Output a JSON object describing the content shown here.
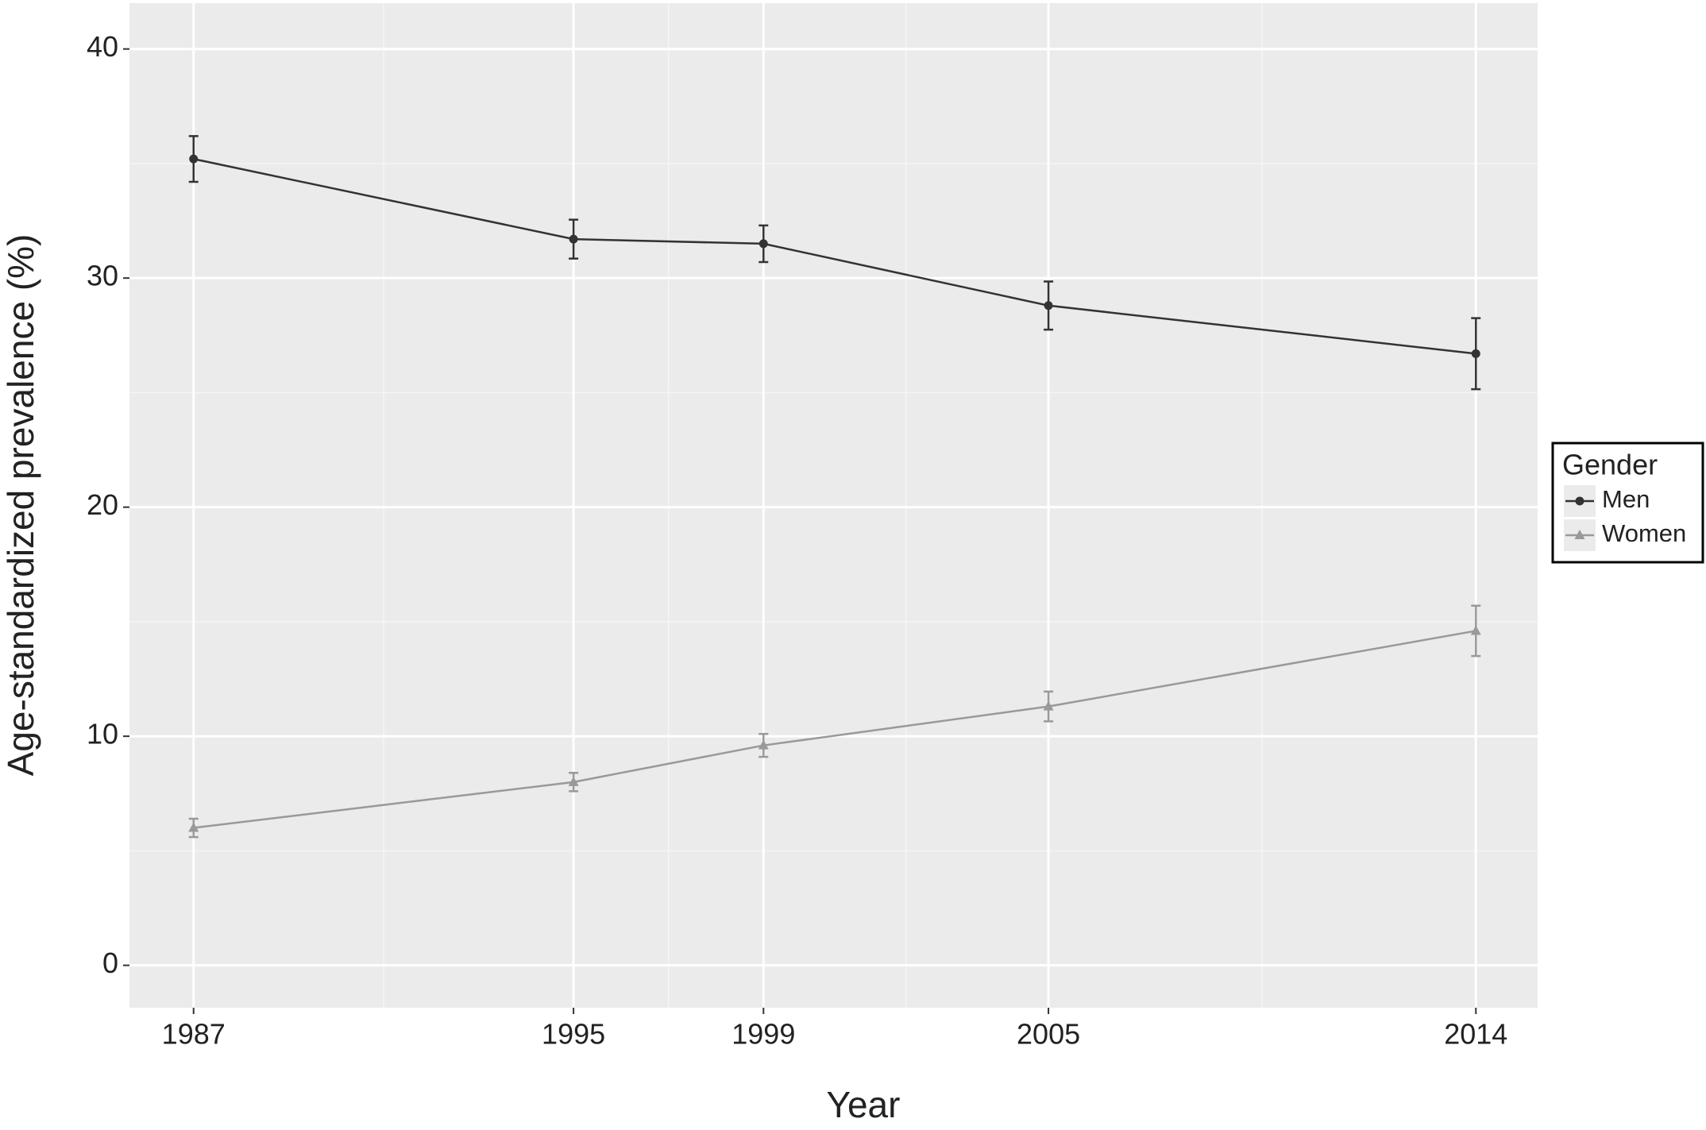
{
  "chart_data": {
    "type": "line",
    "x_label": "Year",
    "y_label": "Age-standardized prevalence (%)",
    "x": [
      1987,
      1995,
      1999,
      2005,
      2014
    ],
    "series": [
      {
        "name": "Men",
        "color": "#333333",
        "marker": "circle",
        "values": [
          35.2,
          31.7,
          31.5,
          28.8,
          26.7
        ],
        "errors": [
          1.0,
          0.85,
          0.8,
          1.05,
          1.55
        ]
      },
      {
        "name": "Women",
        "color": "#999999",
        "marker": "triangle",
        "values": [
          6.0,
          8.0,
          9.6,
          11.3,
          14.6
        ],
        "errors": [
          0.4,
          0.4,
          0.5,
          0.65,
          1.1
        ]
      }
    ],
    "xlim": [
      1985.65,
      2015.3
    ],
    "xticks": [
      1987,
      1995,
      1999,
      2005,
      2014
    ],
    "x_minor_ticks": [
      1991,
      1997,
      2002,
      2009.5
    ],
    "ylim": [
      -1.85,
      42
    ],
    "yticks": [
      0,
      10,
      20,
      30,
      40
    ],
    "y_minor_ticks": [
      5,
      15,
      25,
      35
    ],
    "grid": true,
    "legend_title": "Gender",
    "legend_position": "right"
  }
}
